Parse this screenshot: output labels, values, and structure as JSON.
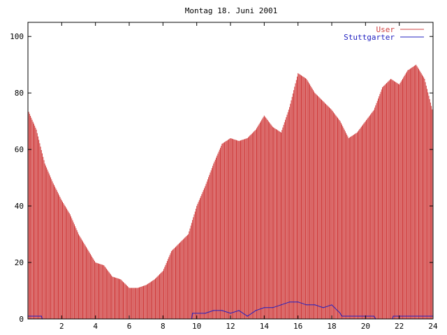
{
  "chart_data": {
    "type": "bar",
    "title": "Montag 18. Juni 2001",
    "xlabel": "",
    "ylabel": "",
    "xlim": [
      0,
      24
    ],
    "ylim": [
      0,
      105
    ],
    "xticks": [
      2,
      4,
      6,
      8,
      10,
      12,
      14,
      16,
      18,
      20,
      22,
      24
    ],
    "yticks": [
      0,
      20,
      40,
      60,
      80,
      100
    ],
    "grid": false,
    "legend": "top-right",
    "series": [
      {
        "name": "User",
        "style": "impulses",
        "color": "#d04040",
        "x": [
          0.0,
          0.5,
          1.0,
          1.5,
          2.0,
          2.5,
          3.0,
          3.5,
          4.0,
          4.5,
          5.0,
          5.5,
          6.0,
          6.5,
          7.0,
          7.5,
          8.0,
          8.5,
          9.0,
          9.5,
          10.0,
          10.5,
          11.0,
          11.5,
          12.0,
          12.5,
          13.0,
          13.5,
          14.0,
          14.5,
          15.0,
          15.5,
          16.0,
          16.5,
          17.0,
          17.5,
          18.0,
          18.5,
          19.0,
          19.5,
          20.0,
          20.5,
          21.0,
          21.5,
          22.0,
          22.5,
          23.0,
          23.5,
          24.0
        ],
        "values": [
          74,
          67,
          55,
          48,
          42,
          37,
          30,
          25,
          20,
          19,
          15,
          14,
          11,
          11,
          12,
          14,
          17,
          24,
          27,
          30,
          40,
          47,
          55,
          62,
          64,
          63,
          64,
          67,
          72,
          68,
          66,
          75,
          87,
          85,
          80,
          77,
          74,
          70,
          64,
          66,
          70,
          74,
          82,
          85,
          83,
          88,
          90,
          85,
          73
        ]
      },
      {
        "name": "Stuttgarter",
        "style": "line",
        "color": "#2020c0",
        "x": [
          0.0,
          0.8,
          0.85,
          9.7,
          9.75,
          10.5,
          11.0,
          11.5,
          12.0,
          12.5,
          13.0,
          13.5,
          14.0,
          14.5,
          15.0,
          15.5,
          16.0,
          16.5,
          17.0,
          17.5,
          18.0,
          18.5,
          18.6,
          20.5,
          20.6,
          21.6,
          21.65,
          24.0
        ],
        "values": [
          1,
          1,
          0,
          0,
          2,
          2,
          3,
          3,
          2,
          3,
          1,
          3,
          4,
          4,
          5,
          6,
          6,
          5,
          5,
          4,
          5,
          2,
          1,
          1,
          0,
          0,
          1,
          1
        ]
      }
    ]
  }
}
